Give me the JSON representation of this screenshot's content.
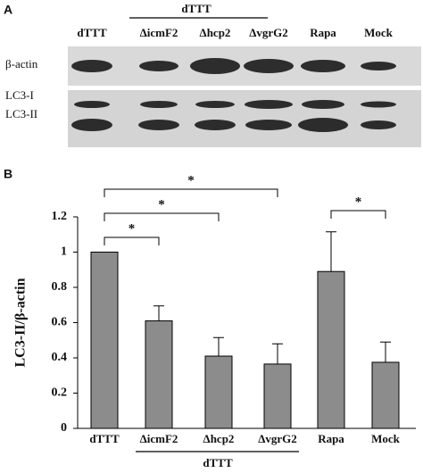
{
  "blot": {
    "panel_label": "A",
    "group_label": "dTTT",
    "lanes": [
      "dTTT",
      "ΔicmF2",
      "Δhcp2",
      "ΔvgrG2",
      "Rapa",
      "Mock"
    ],
    "rows": [
      "β-actin",
      "LC3-I",
      "LC3-II"
    ]
  },
  "chart_data": {
    "type": "bar",
    "panel_label": "B",
    "y_label": "LC3-II/β-actin",
    "categories": [
      "dTTT",
      "ΔicmF2",
      "Δhcp2",
      "ΔvgrG2",
      "Rapa",
      "Mock"
    ],
    "values": [
      1.0,
      0.61,
      0.41,
      0.365,
      0.89,
      0.375
    ],
    "errors": [
      0,
      0.085,
      0.105,
      0.115,
      0.225,
      0.115
    ],
    "color": "#8c8c8c",
    "group_label": "dTTT",
    "ylim": [
      0,
      1.2
    ],
    "yticks": [
      0,
      0.2,
      0.4,
      0.6,
      0.8,
      1,
      1.2
    ],
    "annotations": [
      {
        "text": "*",
        "from": "dTTT",
        "to": "ΔicmF2"
      },
      {
        "text": "*",
        "from": "dTTT",
        "to": "Δhcp2"
      },
      {
        "text": "*",
        "from": "dTTT",
        "to": "ΔvgrG2"
      },
      {
        "text": "*",
        "from": "Rapa",
        "to": "Mock"
      }
    ]
  }
}
